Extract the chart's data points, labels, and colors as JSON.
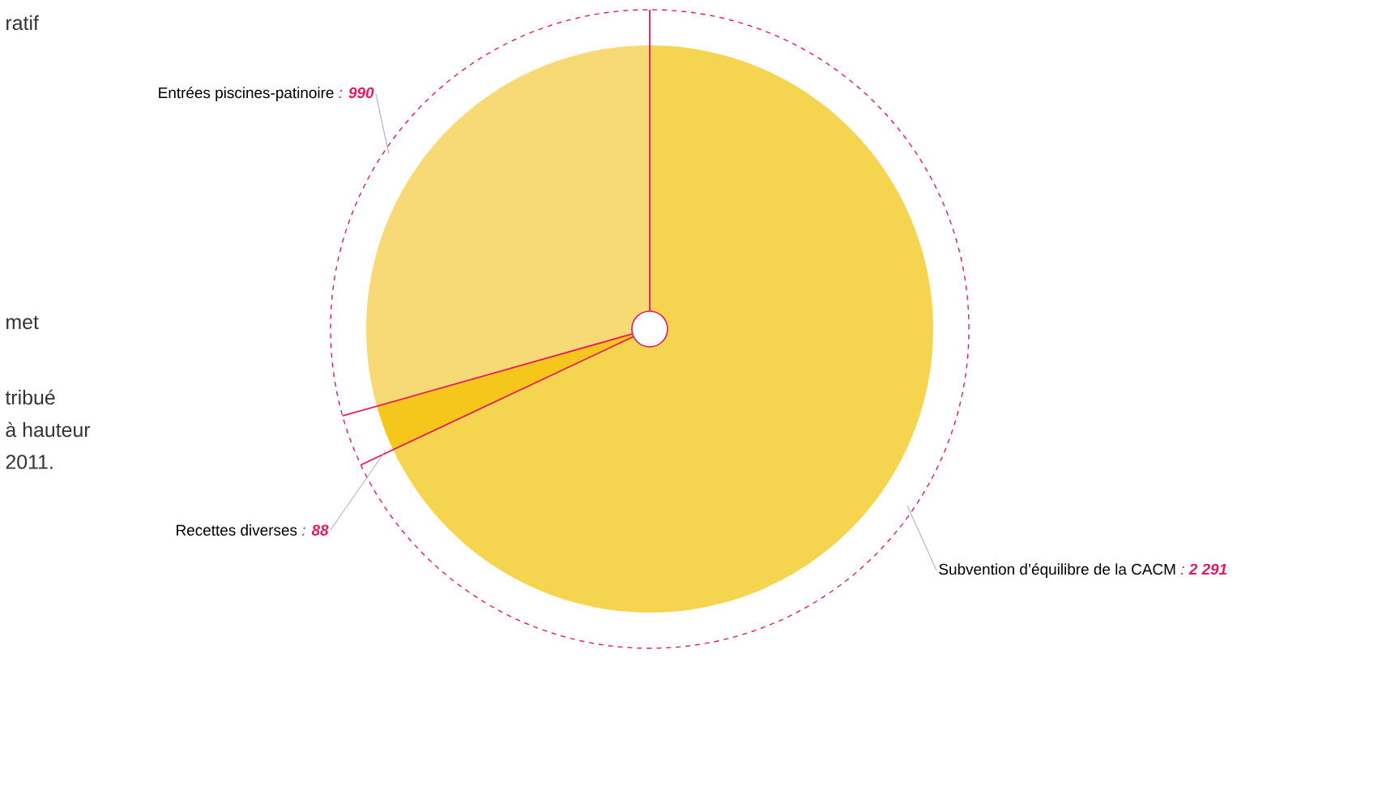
{
  "chart_data": {
    "type": "pie",
    "categories": [
      "Entrées piscines-patinoire",
      "Recettes diverses",
      "Subvention d’équilibre de la CACM"
    ],
    "values": [
      990,
      88,
      2291
    ],
    "value_labels": [
      ": **990**",
      ": **88**",
      ": **2 291**"
    ],
    "colors": [
      "#f7da76",
      "#f5c61c",
      "#f5d44f"
    ],
    "annotations": [
      "ratif",
      "met",
      "tribué",
      "à hauteur",
      "2011."
    ]
  }
}
